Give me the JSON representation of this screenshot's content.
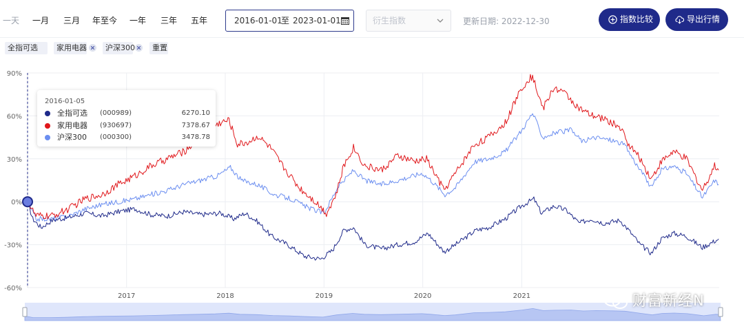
{
  "toolbar": {
    "ranges": [
      "一天",
      "一月",
      "三月",
      "年至今",
      "一年",
      "三年",
      "五年"
    ],
    "date_start": "2016-01-01",
    "date_sep": "至",
    "date_end": "2023-01-01",
    "derived_placeholder": "衍生指数",
    "update_text": "更新日期: 2022-12-30",
    "compare_label": "指数比较",
    "export_label": "导出行情"
  },
  "chips": {
    "items": [
      "全指可选",
      "家用电器",
      "沪深300"
    ],
    "reset": "重置"
  },
  "tooltip": {
    "date": "2016-01-05",
    "rows": [
      {
        "name": "全指可选",
        "code": "(000989)",
        "value": "6270.10",
        "color": "#1f2a8a"
      },
      {
        "name": "家用电器",
        "code": "(930697)",
        "value": "7378.67",
        "color": "#e0171b"
      },
      {
        "name": "沪深300",
        "code": "(000300)",
        "value": "3478.78",
        "color": "#6b8ef0"
      }
    ]
  },
  "watermark": "财富新经N",
  "chart_data": {
    "type": "line",
    "xlabel": "",
    "ylabel": "",
    "ylim": [
      -60,
      90
    ],
    "y_ticks": [
      "90%",
      "60%",
      "30%",
      "0%",
      "-30%",
      "-60%"
    ],
    "x_ticks": [
      "2017",
      "2018",
      "2019",
      "2020",
      "2021"
    ],
    "x_range": [
      "2016-01-01",
      "2023-01-01"
    ],
    "grid": true,
    "colors": {
      "series1": "#1f2a8a",
      "series2": "#e0171b",
      "series3": "#6b8ef0"
    },
    "series": [
      {
        "name": "全指可选",
        "points": [
          [
            "2016-01-01",
            0
          ],
          [
            "2016-01-20",
            -12
          ],
          [
            "2016-02-20",
            -18
          ],
          [
            "2016-04-01",
            -13
          ],
          [
            "2016-06-01",
            -11
          ],
          [
            "2016-08-01",
            -8
          ],
          [
            "2016-10-01",
            -10
          ],
          [
            "2016-12-01",
            -7
          ],
          [
            "2017-02-01",
            -5
          ],
          [
            "2017-04-01",
            -9
          ],
          [
            "2017-06-01",
            -10
          ],
          [
            "2017-08-01",
            -7
          ],
          [
            "2017-10-01",
            -9
          ],
          [
            "2017-12-15",
            -8
          ],
          [
            "2018-02-01",
            -12
          ],
          [
            "2018-03-15",
            -8
          ],
          [
            "2018-05-01",
            -14
          ],
          [
            "2018-06-20",
            -24
          ],
          [
            "2018-08-20",
            -30
          ],
          [
            "2018-10-20",
            -38
          ],
          [
            "2018-12-20",
            -40
          ],
          [
            "2019-02-01",
            -34
          ],
          [
            "2019-03-15",
            -20
          ],
          [
            "2019-04-20",
            -18
          ],
          [
            "2019-06-01",
            -30
          ],
          [
            "2019-08-01",
            -33
          ],
          [
            "2019-10-01",
            -30
          ],
          [
            "2019-12-01",
            -28
          ],
          [
            "2020-01-20",
            -22
          ],
          [
            "2020-03-20",
            -35
          ],
          [
            "2020-05-01",
            -30
          ],
          [
            "2020-07-15",
            -20
          ],
          [
            "2020-09-01",
            -18
          ],
          [
            "2020-11-01",
            -12
          ],
          [
            "2020-12-31",
            -3
          ],
          [
            "2021-02-15",
            2
          ],
          [
            "2021-03-15",
            -8
          ],
          [
            "2021-05-01",
            -3
          ],
          [
            "2021-06-15",
            -6
          ],
          [
            "2021-08-01",
            -15
          ],
          [
            "2021-09-15",
            -12
          ],
          [
            "2021-11-01",
            -15
          ],
          [
            "2021-12-31",
            -13
          ],
          [
            "2022-02-01",
            -20
          ],
          [
            "2022-03-15",
            -30
          ],
          [
            "2022-04-25",
            -36
          ],
          [
            "2022-06-01",
            -26
          ],
          [
            "2022-07-15",
            -22
          ],
          [
            "2022-09-01",
            -24
          ],
          [
            "2022-10-31",
            -32
          ],
          [
            "2022-12-30",
            -26
          ]
        ]
      },
      {
        "name": "家用电器",
        "points": [
          [
            "2016-01-01",
            0
          ],
          [
            "2016-02-01",
            -10
          ],
          [
            "2016-04-01",
            -10
          ],
          [
            "2016-06-01",
            -5
          ],
          [
            "2016-08-01",
            2
          ],
          [
            "2016-10-01",
            5
          ],
          [
            "2016-12-01",
            12
          ],
          [
            "2017-02-01",
            18
          ],
          [
            "2017-04-01",
            25
          ],
          [
            "2017-06-01",
            30
          ],
          [
            "2017-08-01",
            35
          ],
          [
            "2017-10-01",
            45
          ],
          [
            "2017-12-10",
            55
          ],
          [
            "2018-01-15",
            57
          ],
          [
            "2018-02-15",
            40
          ],
          [
            "2018-04-01",
            42
          ],
          [
            "2018-05-01",
            46
          ],
          [
            "2018-06-15",
            38
          ],
          [
            "2018-08-01",
            25
          ],
          [
            "2018-10-01",
            10
          ],
          [
            "2018-12-01",
            0
          ],
          [
            "2019-01-10",
            -8
          ],
          [
            "2019-02-15",
            5
          ],
          [
            "2019-03-15",
            25
          ],
          [
            "2019-04-20",
            38
          ],
          [
            "2019-06-01",
            25
          ],
          [
            "2019-08-01",
            22
          ],
          [
            "2019-10-01",
            32
          ],
          [
            "2019-12-01",
            28
          ],
          [
            "2020-01-15",
            30
          ],
          [
            "2020-03-20",
            8
          ],
          [
            "2020-05-01",
            20
          ],
          [
            "2020-07-10",
            40
          ],
          [
            "2020-09-01",
            45
          ],
          [
            "2020-11-01",
            55
          ],
          [
            "2021-01-01",
            80
          ],
          [
            "2021-02-10",
            88
          ],
          [
            "2021-03-20",
            65
          ],
          [
            "2021-05-01",
            80
          ],
          [
            "2021-06-15",
            75
          ],
          [
            "2021-08-01",
            65
          ],
          [
            "2021-09-15",
            60
          ],
          [
            "2021-11-01",
            58
          ],
          [
            "2021-12-31",
            52
          ],
          [
            "2022-02-01",
            40
          ],
          [
            "2022-03-15",
            30
          ],
          [
            "2022-04-25",
            16
          ],
          [
            "2022-06-01",
            28
          ],
          [
            "2022-07-15",
            35
          ],
          [
            "2022-09-01",
            30
          ],
          [
            "2022-10-31",
            8
          ],
          [
            "2022-12-15",
            25
          ],
          [
            "2022-12-30",
            22
          ]
        ]
      },
      {
        "name": "沪深300",
        "points": [
          [
            "2016-01-01",
            0
          ],
          [
            "2016-02-01",
            -12
          ],
          [
            "2016-04-01",
            -12
          ],
          [
            "2016-06-01",
            -10
          ],
          [
            "2016-08-01",
            -5
          ],
          [
            "2016-10-01",
            -2
          ],
          [
            "2016-12-01",
            0
          ],
          [
            "2017-02-01",
            2
          ],
          [
            "2017-04-01",
            5
          ],
          [
            "2017-06-01",
            8
          ],
          [
            "2017-08-01",
            12
          ],
          [
            "2017-10-01",
            15
          ],
          [
            "2017-12-01",
            18
          ],
          [
            "2018-01-20",
            24
          ],
          [
            "2018-03-01",
            15
          ],
          [
            "2018-05-01",
            12
          ],
          [
            "2018-07-01",
            5
          ],
          [
            "2018-09-01",
            2
          ],
          [
            "2018-11-01",
            -4
          ],
          [
            "2019-01-01",
            -8
          ],
          [
            "2019-02-20",
            10
          ],
          [
            "2019-04-20",
            22
          ],
          [
            "2019-06-01",
            15
          ],
          [
            "2019-08-01",
            12
          ],
          [
            "2019-10-01",
            15
          ],
          [
            "2019-12-31",
            20
          ],
          [
            "2020-02-01",
            15
          ],
          [
            "2020-03-23",
            5
          ],
          [
            "2020-05-01",
            10
          ],
          [
            "2020-07-10",
            28
          ],
          [
            "2020-09-01",
            30
          ],
          [
            "2020-11-01",
            35
          ],
          [
            "2021-01-01",
            50
          ],
          [
            "2021-02-10",
            62
          ],
          [
            "2021-03-20",
            45
          ],
          [
            "2021-05-01",
            48
          ],
          [
            "2021-07-01",
            50
          ],
          [
            "2021-08-15",
            42
          ],
          [
            "2021-10-01",
            45
          ],
          [
            "2021-12-01",
            43
          ],
          [
            "2022-01-15",
            40
          ],
          [
            "2022-03-15",
            22
          ],
          [
            "2022-04-25",
            10
          ],
          [
            "2022-06-01",
            22
          ],
          [
            "2022-07-15",
            25
          ],
          [
            "2022-09-01",
            20
          ],
          [
            "2022-10-31",
            3
          ],
          [
            "2022-12-15",
            15
          ],
          [
            "2022-12-30",
            12
          ]
        ]
      }
    ]
  }
}
